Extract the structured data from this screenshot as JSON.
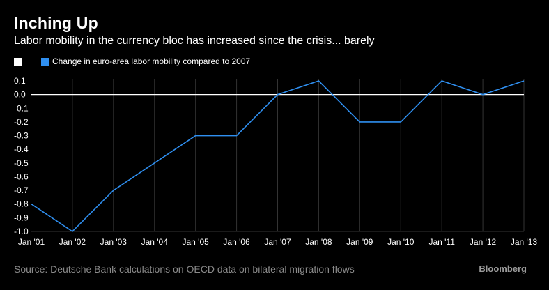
{
  "title": "Inching Up",
  "subtitle": "Labor mobility in the currency bloc has increased since the crisis... barely",
  "source": "Source: Deutsche Bank calculations on OECD data on bilateral migration flows",
  "brand": "Bloomberg",
  "colors": {
    "series": "#2f8ff0",
    "background": "#000000",
    "axis_zero": "#ffffff",
    "grid": "#333333",
    "text": "#ffffff",
    "source_text": "#8a8a8a"
  },
  "chart_data": {
    "type": "line",
    "title": "Inching Up",
    "subtitle": "Labor mobility in the currency bloc has increased since the crisis... barely",
    "x": [
      "Jan '01",
      "Jan '02",
      "Jan '03",
      "Jan '04",
      "Jan '05",
      "Jan '06",
      "Jan '07",
      "Jan '08",
      "Jan '09",
      "Jan '10",
      "Jan '11",
      "Jan '12",
      "Jan '13"
    ],
    "series": [
      {
        "name": "Change in euro-area labor mobility compared to 2007",
        "values": [
          -0.8,
          -1.0,
          -0.7,
          -0.5,
          -0.3,
          -0.3,
          0.0,
          0.1,
          -0.2,
          -0.2,
          0.1,
          0.0,
          0.1
        ]
      }
    ],
    "legend_extra_entry": "",
    "ylim": [
      -1.0,
      0.1
    ],
    "yticks": [
      "0.1",
      "0.0",
      "-0.1",
      "-0.2",
      "-0.3",
      "-0.4",
      "-0.5",
      "-0.6",
      "-0.7",
      "-0.8",
      "-0.9",
      "-1.0"
    ],
    "ytick_values": [
      0.1,
      0.0,
      -0.1,
      -0.2,
      -0.3,
      -0.4,
      -0.5,
      -0.6,
      -0.7,
      -0.8,
      -0.9,
      -1.0
    ],
    "grid": "vertical",
    "legend_position": "top-left",
    "xlabel": "",
    "ylabel": ""
  }
}
